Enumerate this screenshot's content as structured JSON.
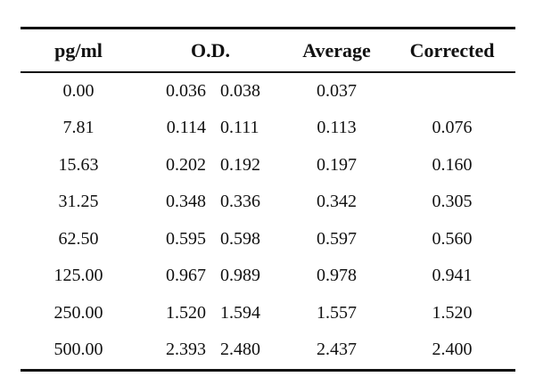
{
  "table": {
    "headers": {
      "conc": "pg/ml",
      "od": "O.D.",
      "average": "Average",
      "corrected": "Corrected"
    },
    "rows": [
      {
        "conc": "0.00",
        "od1": "0.036",
        "od2": "0.038",
        "average": "0.037",
        "corrected": ""
      },
      {
        "conc": "7.81",
        "od1": "0.114",
        "od2": "0.111",
        "average": "0.113",
        "corrected": "0.076"
      },
      {
        "conc": "15.63",
        "od1": "0.202",
        "od2": "0.192",
        "average": "0.197",
        "corrected": "0.160"
      },
      {
        "conc": "31.25",
        "od1": "0.348",
        "od2": "0.336",
        "average": "0.342",
        "corrected": "0.305"
      },
      {
        "conc": "62.50",
        "od1": "0.595",
        "od2": "0.598",
        "average": "0.597",
        "corrected": "0.560"
      },
      {
        "conc": "125.00",
        "od1": "0.967",
        "od2": "0.989",
        "average": "0.978",
        "corrected": "0.941"
      },
      {
        "conc": "250.00",
        "od1": "1.520",
        "od2": "1.594",
        "average": "1.557",
        "corrected": "1.520"
      },
      {
        "conc": "500.00",
        "od1": "2.393",
        "od2": "2.480",
        "average": "2.437",
        "corrected": "2.400"
      }
    ]
  }
}
